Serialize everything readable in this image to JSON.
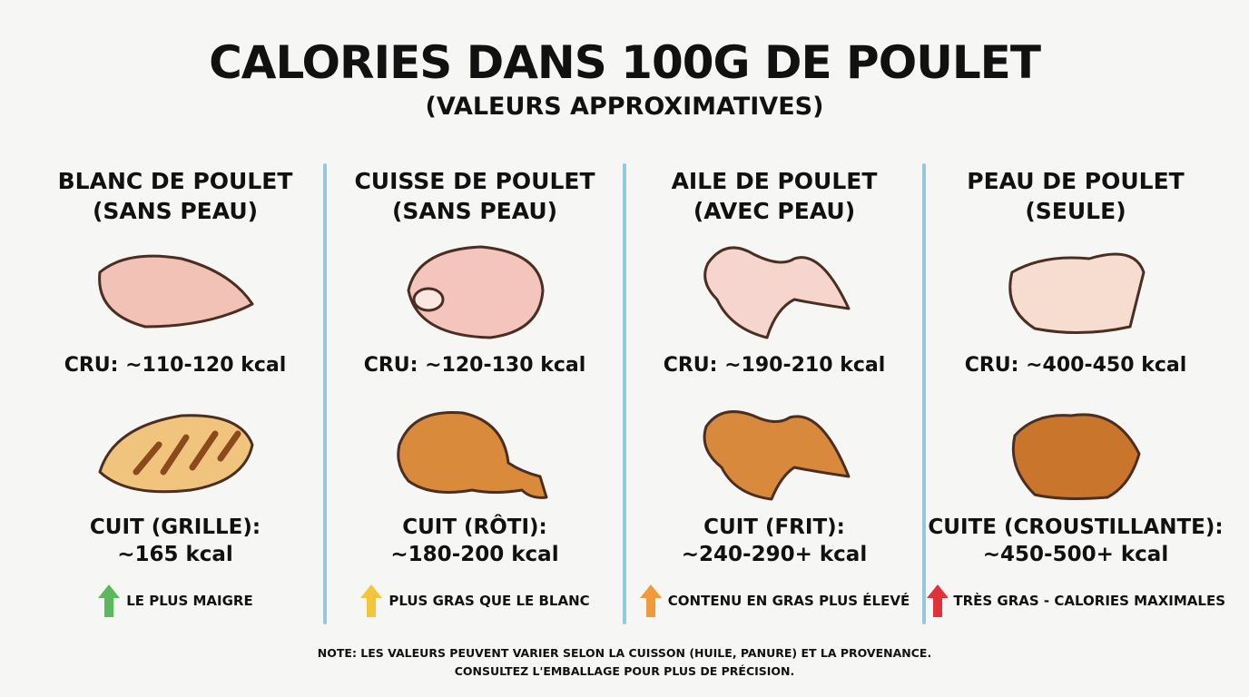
{
  "header": {
    "title": "CALORIES DANS 100G DE POULET",
    "subtitle": "(VALEURS APPROXIMATIVES)"
  },
  "columns": [
    {
      "title": [
        "BLANC DE POULET",
        "(SANS PEAU)"
      ],
      "raw": "CRU: ~110-120 kcal",
      "cooked": [
        "CUIT (GRILLE):",
        "~165 kcal"
      ],
      "badge": "LE PLUS MAIGRE"
    },
    {
      "title": [
        "CUISSE DE POULET",
        "(SANS PEAU)"
      ],
      "raw": "CRU: ~120-130 kcal",
      "cooked": [
        "CUIT (RÔTI):",
        "~180-200 kcal"
      ],
      "badge": "PLUS GRAS QUE LE BLANC"
    },
    {
      "title": [
        "AILE DE POULET",
        "(AVEC PEAU)"
      ],
      "raw": "CRU: ~190-210 kcal",
      "cooked": [
        "CUIT (FRIT):",
        "~240-290+ kcal"
      ],
      "badge": "CONTENU EN GRAS PLUS ÉLEVÉ"
    },
    {
      "title": [
        "PEAU DE POULET",
        "(SEULE)"
      ],
      "raw": "CRU: ~400-450 kcal",
      "cooked": [
        "CUITE (CROUSTILLANTE):",
        "~450-500+ kcal"
      ],
      "badge": "TRÈS GRAS - CALORIES MAXIMALES"
    }
  ],
  "note": [
    "NOTE: LES VALEURS PEUVENT VARIER SELON LA CUISSON (HUILE, PANURE) ET LA PROVENANCE.",
    "CONSULTEZ L'EMBALLAGE POUR PLUS DE PRÉCISION."
  ]
}
